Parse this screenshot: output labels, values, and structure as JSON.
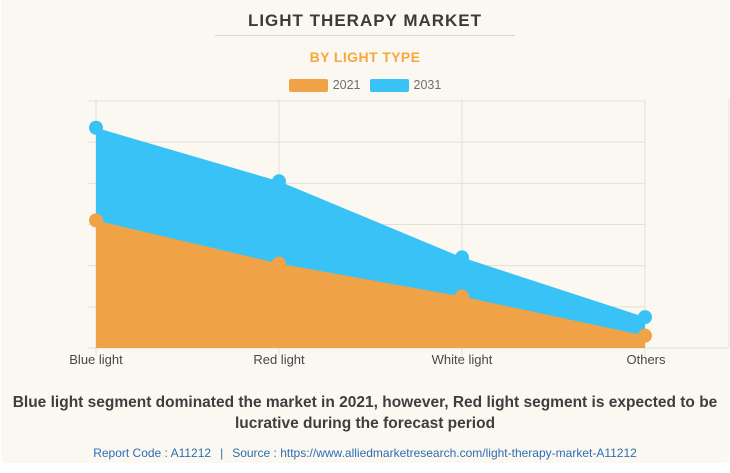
{
  "header": {
    "title": "LIGHT THERAPY MARKET",
    "subtitle": "BY LIGHT TYPE"
  },
  "legend": [
    {
      "label": "2021",
      "color": "#F0A346"
    },
    {
      "label": "2031",
      "color": "#38C2F6"
    }
  ],
  "chart_data": {
    "type": "area",
    "title": "LIGHT THERAPY MARKET",
    "subtitle": "BY LIGHT TYPE",
    "categories": [
      "Blue light",
      "Red light",
      "White light",
      "Others"
    ],
    "series": [
      {
        "name": "2031",
        "color": "#38C2F6",
        "values": [
          5.35,
          4.05,
          2.2,
          0.75
        ]
      },
      {
        "name": "2021",
        "color": "#F0A346",
        "values": [
          3.1,
          2.05,
          1.25,
          0.3
        ]
      }
    ],
    "xlabel": "",
    "ylabel": "",
    "ylim": [
      0,
      6
    ],
    "y_axis_labels_visible": false,
    "grid": true,
    "legend_position": "top",
    "units": "relative gridline units (no numeric axis labels shown in image)"
  },
  "description": "Blue light segment dominated the market in 2021, however, Red light segment is expected to be lucrative during the forecast period",
  "footer": {
    "report_code": "Report Code : A11212",
    "separator": "|",
    "source": "Source : https://www.alliedmarketresearch.com/light-therapy-market-A11212"
  },
  "colors": {
    "panel_background": "#FAF8F1",
    "title_text": "#3B3B3B",
    "subtitle_orange": "#F9A63A",
    "series_2021_orange": "#F0A346",
    "series_2031_blue": "#38C2F6",
    "gridline": "#E2E0DA",
    "axis_label_text": "#47484C",
    "link_blue": "#2E6DB4"
  }
}
